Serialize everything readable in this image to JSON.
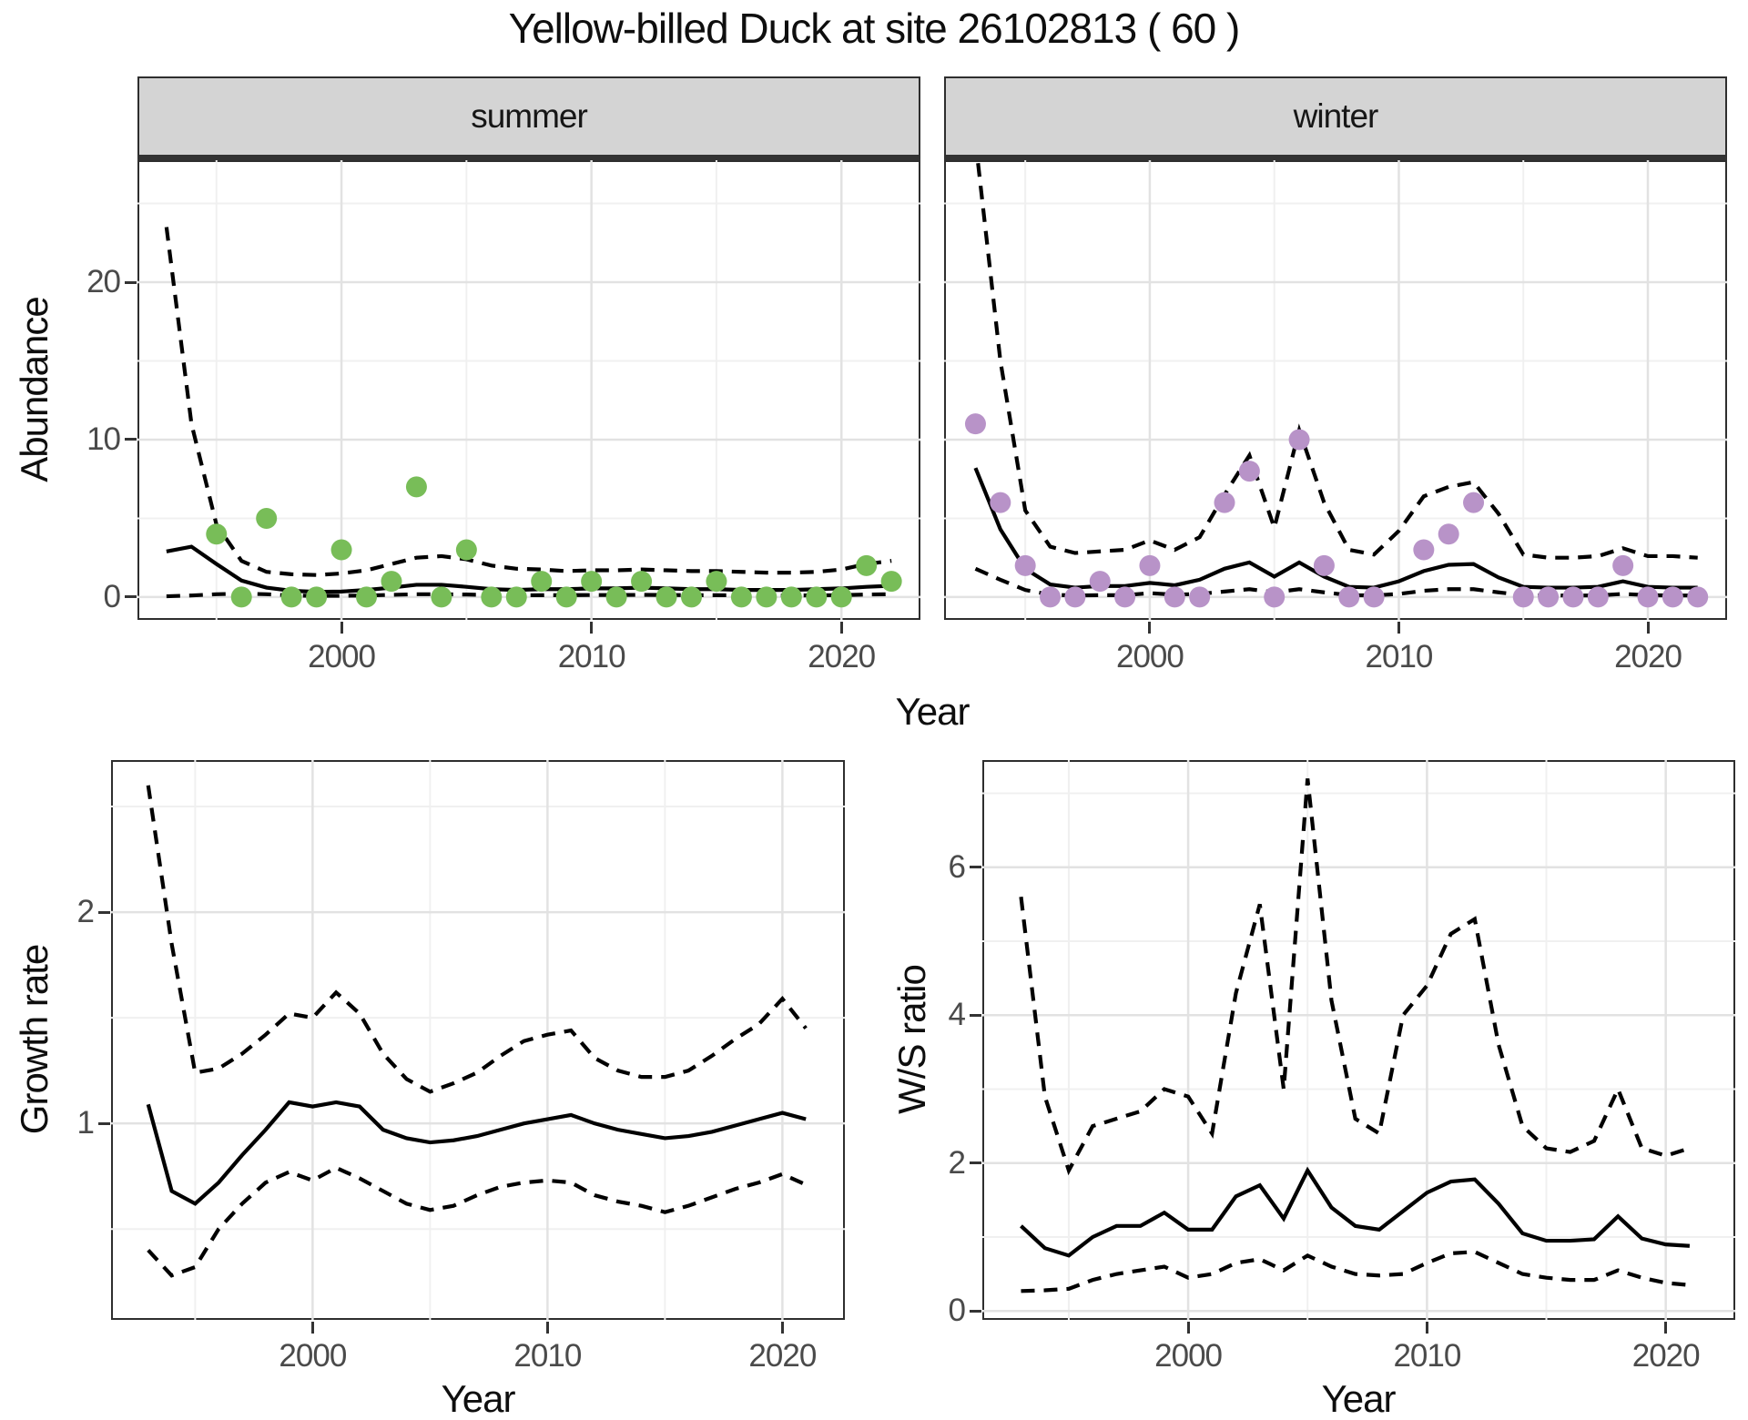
{
  "title": "Yellow-billed Duck at site 26102813 ( 60 )",
  "facets": [
    "summer",
    "winter"
  ],
  "axis_titles": {
    "x": "Year",
    "y_top": "Abundance",
    "y_growth": "Growth rate",
    "y_ws": "W/S ratio"
  },
  "colors": {
    "summer_points": "#78bd58",
    "winter_points": "#b893c8",
    "line": "#000000",
    "strip_bg": "#d4d4d4",
    "panel_border": "#2e2e2e",
    "grid_major": "#e2e2e2",
    "grid_minor": "#f0f0f0",
    "tick_text": "#4a4a4a"
  },
  "chart_data": [
    {
      "id": "abundance-summer",
      "type": "line",
      "facet": "summer",
      "title": "",
      "xlabel": "Year",
      "ylabel": "Abundance",
      "x": [
        1993,
        1994,
        1995,
        1996,
        1997,
        1998,
        1999,
        2000,
        2001,
        2002,
        2003,
        2004,
        2005,
        2006,
        2007,
        2008,
        2009,
        2010,
        2011,
        2012,
        2013,
        2014,
        2015,
        2016,
        2017,
        2018,
        2019,
        2020,
        2021,
        2022
      ],
      "series": [
        {
          "name": "fitted_mean",
          "style": "solid",
          "values": [
            2.9,
            3.2,
            2.1,
            1.05,
            0.6,
            0.4,
            0.33,
            0.35,
            0.45,
            0.6,
            0.78,
            0.78,
            0.65,
            0.5,
            0.45,
            0.5,
            0.5,
            0.55,
            0.55,
            0.6,
            0.55,
            0.5,
            0.5,
            0.45,
            0.45,
            0.45,
            0.5,
            0.55,
            0.65,
            0.72
          ]
        },
        {
          "name": "ci_upper",
          "style": "dashed",
          "values": [
            23.5,
            11,
            4.6,
            2.3,
            1.6,
            1.45,
            1.4,
            1.5,
            1.7,
            2.1,
            2.5,
            2.6,
            2.4,
            2.0,
            1.8,
            1.75,
            1.65,
            1.7,
            1.7,
            1.75,
            1.7,
            1.65,
            1.65,
            1.6,
            1.55,
            1.55,
            1.6,
            1.75,
            2.1,
            2.3
          ]
        },
        {
          "name": "ci_lower",
          "style": "dashed",
          "values": [
            0.05,
            0.1,
            0.18,
            0.22,
            0.18,
            0.1,
            0.08,
            0.08,
            0.1,
            0.14,
            0.18,
            0.18,
            0.16,
            0.13,
            0.11,
            0.12,
            0.12,
            0.13,
            0.13,
            0.14,
            0.13,
            0.12,
            0.12,
            0.11,
            0.1,
            0.1,
            0.11,
            0.12,
            0.16,
            0.18
          ]
        }
      ],
      "points": {
        "name": "observed_counts",
        "color": "#78bd58",
        "x": [
          1995,
          1996,
          1997,
          1998,
          1999,
          2000,
          2001,
          2002,
          2003,
          2004,
          2005,
          2006,
          2007,
          2008,
          2009,
          2010,
          2011,
          2012,
          2013,
          2014,
          2015,
          2016,
          2017,
          2018,
          2019,
          2020,
          2021,
          2022
        ],
        "y": [
          4,
          0,
          5,
          0,
          0,
          3,
          0,
          1,
          7,
          0,
          3,
          0,
          0,
          1,
          0,
          1,
          0,
          1,
          0,
          0,
          1,
          0,
          0,
          0,
          0,
          0,
          2,
          1
        ]
      },
      "x_axis": {
        "ticks": [
          2000,
          2010,
          2020
        ],
        "tick_labels": [
          "2000",
          "2010",
          "2020"
        ],
        "minor": [
          1995,
          2005,
          2015
        ],
        "range": [
          1991.84,
          2023.16
        ]
      },
      "y_axis": {
        "ticks": [
          0,
          10,
          20
        ],
        "tick_labels": [
          "0",
          "10",
          "20"
        ],
        "minor": [
          5,
          15,
          25
        ],
        "range": [
          -1.45,
          27.75
        ],
        "show_labels": true
      }
    },
    {
      "id": "abundance-winter",
      "type": "line",
      "facet": "winter",
      "title": "",
      "xlabel": "Year",
      "ylabel": "Abundance",
      "x": [
        1993,
        1994,
        1995,
        1996,
        1997,
        1998,
        1999,
        2000,
        2001,
        2002,
        2003,
        2004,
        2005,
        2006,
        2007,
        2008,
        2009,
        2010,
        2011,
        2012,
        2013,
        2014,
        2015,
        2016,
        2017,
        2018,
        2019,
        2020,
        2021,
        2022
      ],
      "series": [
        {
          "name": "fitted_mean",
          "style": "solid",
          "values": [
            8.2,
            4.3,
            1.8,
            0.8,
            0.6,
            0.7,
            0.7,
            0.9,
            0.75,
            1.1,
            1.8,
            2.2,
            1.3,
            2.2,
            1.3,
            0.65,
            0.6,
            1.0,
            1.65,
            2.05,
            2.1,
            1.25,
            0.65,
            0.6,
            0.6,
            0.65,
            1.0,
            0.65,
            0.6,
            0.6
          ]
        },
        {
          "name": "ci_upper",
          "style": "dashed",
          "values": [
            29,
            15,
            5.5,
            3.2,
            2.8,
            2.9,
            3.0,
            3.6,
            3.0,
            3.8,
            6.5,
            9.0,
            4.4,
            10.6,
            6.0,
            3.0,
            2.7,
            4.2,
            6.4,
            7.0,
            7.3,
            5.3,
            2.7,
            2.5,
            2.5,
            2.6,
            3.1,
            2.6,
            2.6,
            2.5
          ]
        },
        {
          "name": "ci_lower",
          "style": "dashed",
          "values": [
            1.8,
            1.1,
            0.45,
            0.15,
            0.1,
            0.12,
            0.12,
            0.25,
            0.15,
            0.2,
            0.35,
            0.5,
            0.3,
            0.5,
            0.3,
            0.12,
            0.1,
            0.2,
            0.4,
            0.5,
            0.5,
            0.3,
            0.12,
            0.1,
            0.1,
            0.1,
            0.2,
            0.12,
            0.1,
            0.1
          ]
        }
      ],
      "points": {
        "name": "observed_counts",
        "color": "#b893c8",
        "x": [
          1993,
          1994,
          1995,
          1996,
          1997,
          1998,
          1999,
          2000,
          2001,
          2002,
          2003,
          2004,
          2005,
          2006,
          2007,
          2008,
          2009,
          2011,
          2012,
          2013,
          2015,
          2016,
          2017,
          2018,
          2019,
          2020,
          2021,
          2022
        ],
        "y": [
          11,
          6,
          2,
          0,
          0,
          1,
          0,
          2,
          0,
          0,
          6,
          8,
          0,
          10,
          2,
          0,
          0,
          3,
          4,
          6,
          0,
          0,
          0,
          0,
          2,
          0,
          0,
          0
        ]
      },
      "x_axis": {
        "ticks": [
          2000,
          2010,
          2020
        ],
        "tick_labels": [
          "2000",
          "2010",
          "2020"
        ],
        "minor": [
          1995,
          2005,
          2015
        ],
        "range": [
          1991.74,
          2023.18
        ]
      },
      "y_axis": {
        "ticks": [
          0,
          10,
          20
        ],
        "tick_labels": [
          "0",
          "10",
          "20"
        ],
        "minor": [
          5,
          15,
          25
        ],
        "range": [
          -1.45,
          27.75
        ],
        "show_labels": false
      }
    },
    {
      "id": "growth-rate",
      "type": "line",
      "facet": "",
      "title": "",
      "xlabel": "Year",
      "ylabel": "Growth rate",
      "x": [
        1993,
        1994,
        1995,
        1996,
        1997,
        1998,
        1999,
        2000,
        2001,
        2002,
        2003,
        2004,
        2005,
        2006,
        2007,
        2008,
        2009,
        2010,
        2011,
        2012,
        2013,
        2014,
        2015,
        2016,
        2017,
        2018,
        2019,
        2020,
        2021
      ],
      "series": [
        {
          "name": "fitted_mean",
          "style": "solid",
          "values": [
            1.09,
            0.68,
            0.62,
            0.72,
            0.85,
            0.97,
            1.1,
            1.08,
            1.1,
            1.08,
            0.97,
            0.93,
            0.91,
            0.92,
            0.94,
            0.97,
            1.0,
            1.02,
            1.04,
            1.0,
            0.97,
            0.95,
            0.93,
            0.94,
            0.96,
            0.99,
            1.02,
            1.05,
            1.02
          ]
        },
        {
          "name": "ci_upper",
          "style": "dashed",
          "values": [
            2.6,
            1.85,
            1.24,
            1.26,
            1.33,
            1.42,
            1.52,
            1.5,
            1.62,
            1.52,
            1.33,
            1.21,
            1.15,
            1.19,
            1.24,
            1.32,
            1.39,
            1.42,
            1.44,
            1.31,
            1.25,
            1.22,
            1.22,
            1.25,
            1.32,
            1.4,
            1.47,
            1.59,
            1.45
          ]
        },
        {
          "name": "ci_lower",
          "style": "dashed",
          "values": [
            0.4,
            0.28,
            0.32,
            0.5,
            0.62,
            0.72,
            0.77,
            0.73,
            0.79,
            0.74,
            0.68,
            0.62,
            0.59,
            0.61,
            0.66,
            0.7,
            0.72,
            0.73,
            0.72,
            0.66,
            0.63,
            0.61,
            0.58,
            0.61,
            0.65,
            0.69,
            0.72,
            0.76,
            0.71
          ]
        }
      ],
      "points": null,
      "x_axis": {
        "ticks": [
          2000,
          2010,
          2020
        ],
        "tick_labels": [
          "2000",
          "2010",
          "2020"
        ],
        "minor": [
          1995,
          2005,
          2015
        ],
        "range": [
          1991.42,
          2022.66
        ]
      },
      "y_axis": {
        "ticks": [
          1,
          2
        ],
        "tick_labels": [
          "1",
          "2"
        ],
        "minor": [
          0.5,
          1.5,
          2.5
        ],
        "range": [
          0.07,
          2.72
        ],
        "show_labels": true
      }
    },
    {
      "id": "ws-ratio",
      "type": "line",
      "facet": "",
      "title": "",
      "xlabel": "Year",
      "ylabel": "W/S ratio",
      "x": [
        1993,
        1994,
        1995,
        1996,
        1997,
        1998,
        1999,
        2000,
        2001,
        2002,
        2003,
        2004,
        2005,
        2006,
        2007,
        2008,
        2009,
        2010,
        2011,
        2012,
        2013,
        2014,
        2015,
        2016,
        2017,
        2018,
        2019,
        2020,
        2021
      ],
      "series": [
        {
          "name": "fitted_mean",
          "style": "solid",
          "values": [
            1.15,
            0.85,
            0.75,
            1.0,
            1.15,
            1.15,
            1.33,
            1.1,
            1.1,
            1.55,
            1.7,
            1.25,
            1.9,
            1.4,
            1.15,
            1.1,
            1.35,
            1.6,
            1.75,
            1.78,
            1.45,
            1.05,
            0.95,
            0.95,
            0.97,
            1.28,
            0.98,
            0.9,
            0.88
          ]
        },
        {
          "name": "ci_upper",
          "style": "dashed",
          "values": [
            5.6,
            2.9,
            1.9,
            2.5,
            2.6,
            2.7,
            3.0,
            2.9,
            2.4,
            4.3,
            5.5,
            3.0,
            7.2,
            4.2,
            2.6,
            2.4,
            4.0,
            4.4,
            5.1,
            5.3,
            3.6,
            2.5,
            2.2,
            2.15,
            2.3,
            3.0,
            2.2,
            2.1,
            2.2
          ]
        },
        {
          "name": "ci_lower",
          "style": "dashed",
          "values": [
            0.27,
            0.28,
            0.3,
            0.42,
            0.5,
            0.55,
            0.6,
            0.45,
            0.5,
            0.65,
            0.7,
            0.55,
            0.75,
            0.6,
            0.5,
            0.48,
            0.5,
            0.65,
            0.78,
            0.8,
            0.65,
            0.5,
            0.45,
            0.42,
            0.42,
            0.55,
            0.45,
            0.38,
            0.35
          ]
        }
      ],
      "points": null,
      "x_axis": {
        "ticks": [
          2000,
          2010,
          2020
        ],
        "tick_labels": [
          "2000",
          "2010",
          "2020"
        ],
        "minor": [
          1995,
          2005,
          2015
        ],
        "range": [
          1991.38,
          2022.91
        ]
      },
      "y_axis": {
        "ticks": [
          0,
          2,
          4,
          6
        ],
        "tick_labels": [
          "0",
          "2",
          "4",
          "6"
        ],
        "minor": [
          1,
          3,
          5,
          7
        ],
        "range": [
          -0.12,
          7.45
        ],
        "show_labels": true
      }
    }
  ]
}
